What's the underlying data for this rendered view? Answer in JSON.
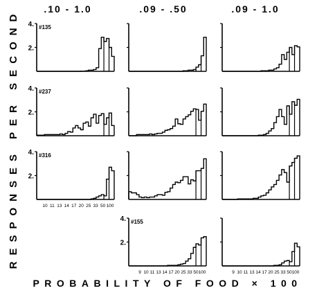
{
  "figure": {
    "y_axis_label": "RESPONSES PER SECOND",
    "x_axis_label": "PROBABILITY OF FOOD × 100",
    "column_titles": [
      ".10 - 1.0",
      ".09 - .50",
      ".09 - 1.0"
    ]
  },
  "chart_data": {
    "type": "bar",
    "grid": false,
    "legend": "none",
    "x_tick_labels": [
      "9",
      "10",
      "11",
      "13",
      "14",
      "17",
      "20",
      "25",
      "33",
      "50",
      "100"
    ],
    "y_tick_labels": [
      "2.",
      "4."
    ],
    "ylim": [
      0,
      4
    ],
    "panels": [
      {
        "row": 0,
        "col": 0,
        "subject": "#135",
        "values": [
          0,
          0,
          0,
          0,
          0,
          0,
          0,
          0,
          0,
          0,
          0,
          0,
          0,
          0,
          0,
          0,
          0,
          0.02,
          0.02,
          0.05,
          0.1,
          0.1,
          0.15,
          0.3,
          1.9,
          2.85,
          2.5,
          2.75,
          2.0,
          1.25
        ]
      },
      {
        "row": 0,
        "col": 1,
        "subject": "",
        "values": [
          0,
          0,
          0,
          0,
          0,
          0,
          0,
          0,
          0,
          0,
          0,
          0,
          0,
          0,
          0,
          0,
          0,
          0,
          0,
          0,
          0,
          0.05,
          0.05,
          0.1,
          0.1,
          0.15,
          0.35,
          0.55,
          1.3,
          2.85
        ]
      },
      {
        "row": 0,
        "col": 2,
        "subject": "",
        "values": [
          0,
          0,
          0,
          0,
          0,
          0,
          0,
          0,
          0,
          0,
          0,
          0,
          0,
          0,
          0,
          0.05,
          0.05,
          0.05,
          0.1,
          0.1,
          0.2,
          0.3,
          0.6,
          1.4,
          1.0,
          1.6,
          2.0,
          1.4,
          2.15,
          2.05
        ]
      },
      {
        "row": 1,
        "col": 0,
        "subject": "#237",
        "values": [
          0.05,
          0.05,
          0.05,
          0.1,
          0.1,
          0.1,
          0.1,
          0.1,
          0.1,
          0.15,
          0.1,
          0.2,
          0.35,
          0.3,
          0.65,
          0.85,
          0.65,
          0.5,
          1.05,
          1.15,
          0.8,
          1.5,
          1.8,
          1.05,
          1.7,
          1.85,
          0.95,
          1.5,
          1.9,
          0.85
        ]
      },
      {
        "row": 1,
        "col": 1,
        "subject": "",
        "values": [
          0,
          0,
          0,
          0.1,
          0.1,
          0.1,
          0.1,
          0.1,
          0.15,
          0.1,
          0.15,
          0.2,
          0.2,
          0.3,
          0.45,
          0.5,
          0.6,
          0.8,
          1.4,
          1.0,
          0.95,
          1.4,
          1.6,
          1.75,
          2.05,
          2.25,
          2.2,
          1.3,
          2.05,
          2.65
        ]
      },
      {
        "row": 1,
        "col": 2,
        "subject": "",
        "values": [
          0,
          0,
          0,
          0,
          0,
          0,
          0,
          0,
          0,
          0,
          0,
          0,
          0,
          0,
          0.05,
          0.05,
          0.1,
          0.2,
          0.4,
          0.6,
          1.1,
          1.6,
          2.2,
          1.6,
          0.95,
          2.5,
          1.8,
          2.85,
          2.55,
          3.05
        ]
      },
      {
        "row": 2,
        "col": 0,
        "subject": "#316",
        "values": [
          0,
          0,
          0,
          0,
          0,
          0,
          0,
          0,
          0,
          0,
          0,
          0,
          0,
          0,
          0,
          0,
          0,
          0,
          0,
          0,
          0,
          0.05,
          0.1,
          0.2,
          0.3,
          0.4,
          0.3,
          1.7,
          2.7,
          2.4
        ]
      },
      {
        "row": 2,
        "col": 1,
        "subject": "",
        "values": [
          0.65,
          0.55,
          0.55,
          0.4,
          0.2,
          0.15,
          0.2,
          0.15,
          0.2,
          0.2,
          0.3,
          0.4,
          0.4,
          0.35,
          0.6,
          0.65,
          0.95,
          1.25,
          1.45,
          1.4,
          1.6,
          1.9,
          1.9,
          1.3,
          1.65,
          1.55,
          2.4,
          2.4,
          2.6,
          3.4
        ]
      },
      {
        "row": 2,
        "col": 2,
        "subject": "",
        "values": [
          0,
          0,
          0,
          0,
          0,
          0,
          0.05,
          0.05,
          0.05,
          0.05,
          0.05,
          0.05,
          0.1,
          0.1,
          0.2,
          0.3,
          0.35,
          0.55,
          0.8,
          1.05,
          1.25,
          1.6,
          2.05,
          2.5,
          2.25,
          1.45,
          2.8,
          3.1,
          3.45,
          3.65
        ]
      },
      {
        "row": 3,
        "col": 1,
        "subject": "#155",
        "values": [
          0,
          0,
          0,
          0,
          0,
          0,
          0,
          0,
          0,
          0,
          0,
          0,
          0,
          0,
          0,
          0.05,
          0.05,
          0.05,
          0.05,
          0.1,
          0.15,
          0.2,
          0.4,
          0.6,
          1.05,
          1.55,
          1.85,
          1.75,
          2.35,
          2.45
        ]
      },
      {
        "row": 3,
        "col": 2,
        "subject": "",
        "values": [
          0,
          0,
          0,
          0,
          0,
          0,
          0,
          0,
          0,
          0,
          0,
          0,
          0,
          0,
          0,
          0,
          0,
          0,
          0,
          0,
          0.05,
          0.05,
          0.1,
          0.25,
          0.4,
          0.45,
          0.35,
          1.2,
          1.9,
          1.6
        ]
      }
    ]
  }
}
